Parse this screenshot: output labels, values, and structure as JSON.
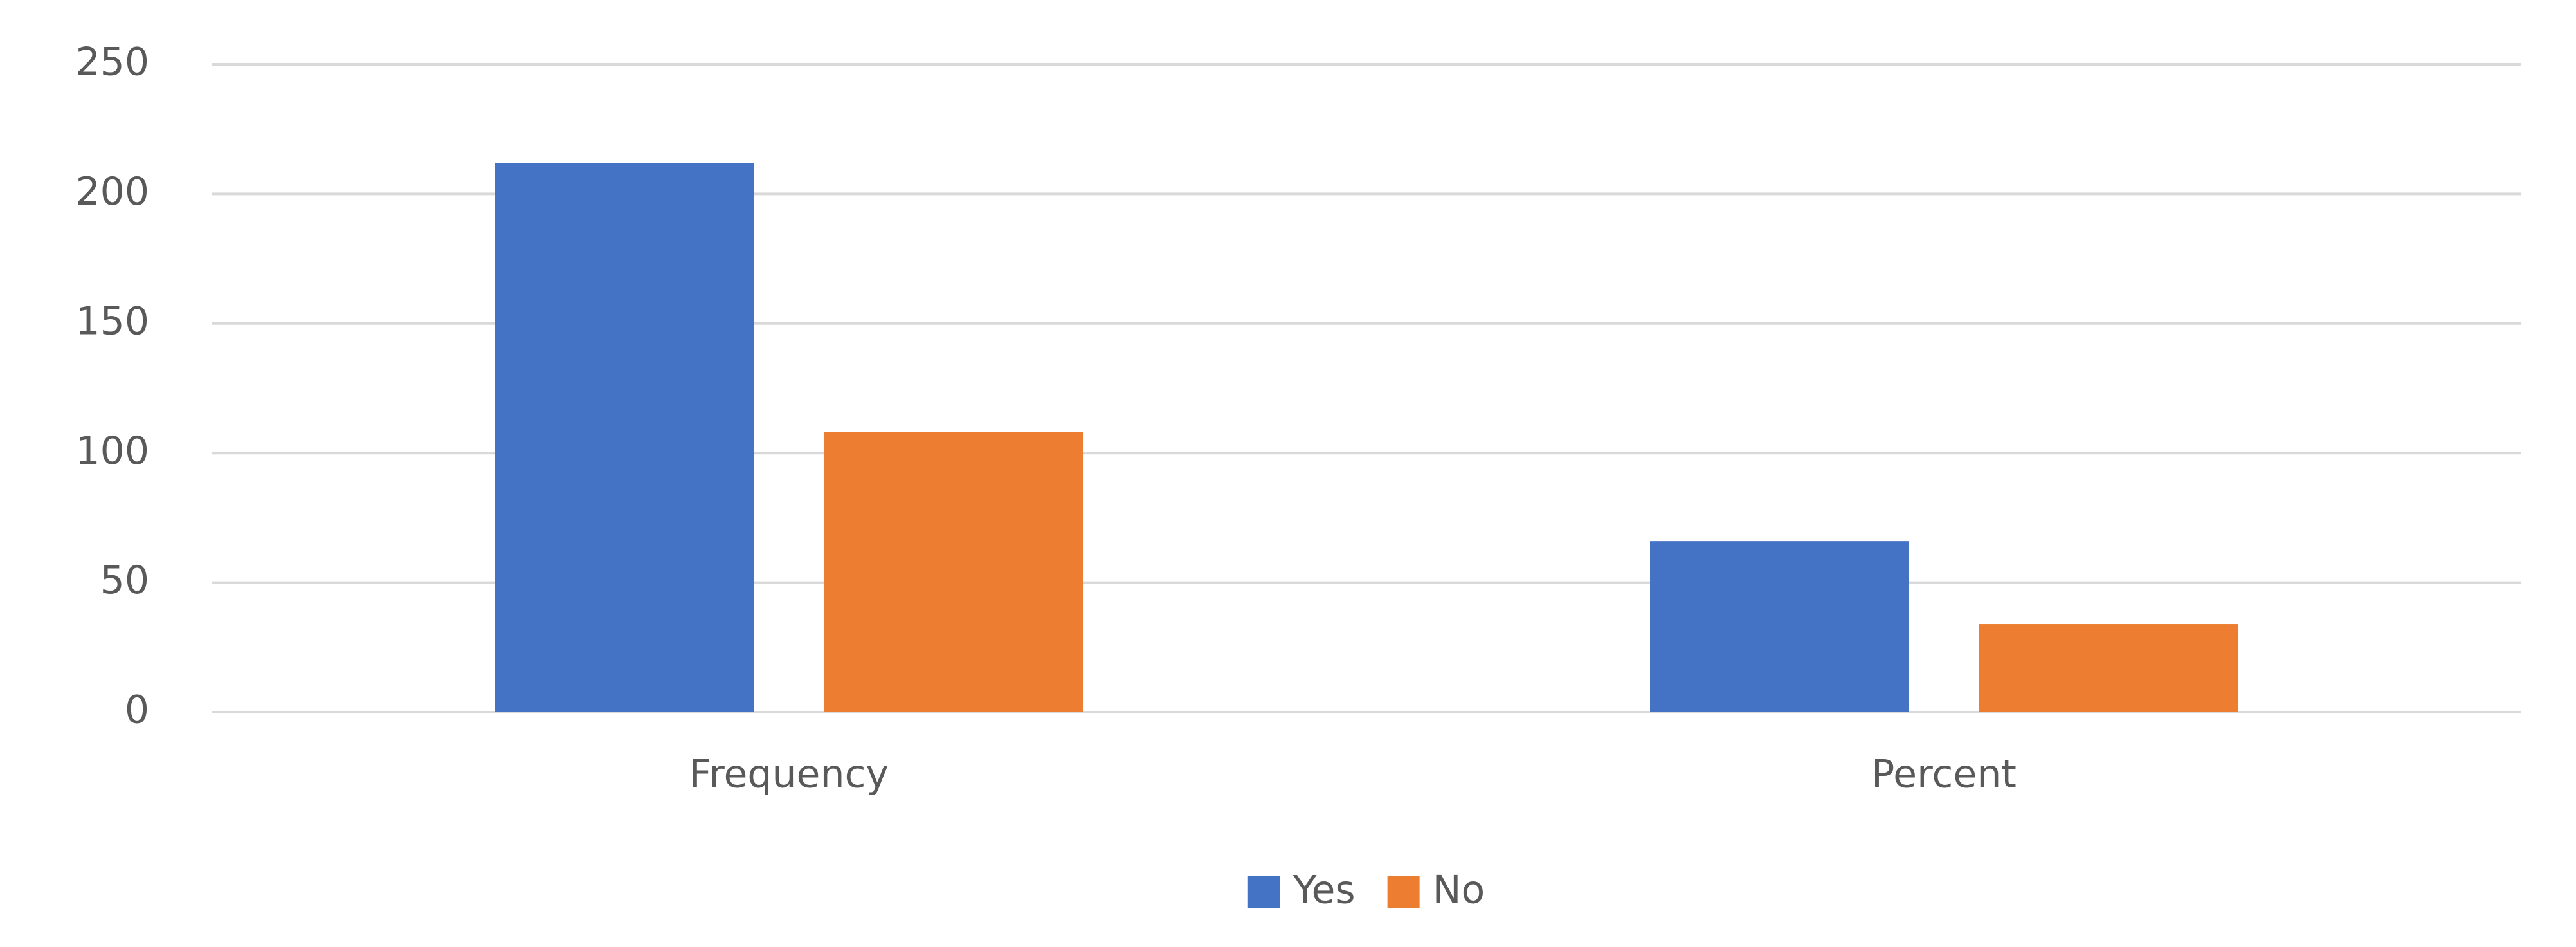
{
  "chart_data": {
    "type": "bar",
    "categories": [
      "Frequency",
      "Percent"
    ],
    "series": [
      {
        "name": "Yes",
        "color": "#4472c4",
        "values": [
          212,
          66
        ]
      },
      {
        "name": "No",
        "color": "#ed7d31",
        "values": [
          108,
          34
        ]
      }
    ],
    "ylim": [
      0,
      250
    ],
    "yticks": [
      0,
      50,
      100,
      150,
      200,
      250
    ],
    "grid": true,
    "legend": "bottom"
  }
}
